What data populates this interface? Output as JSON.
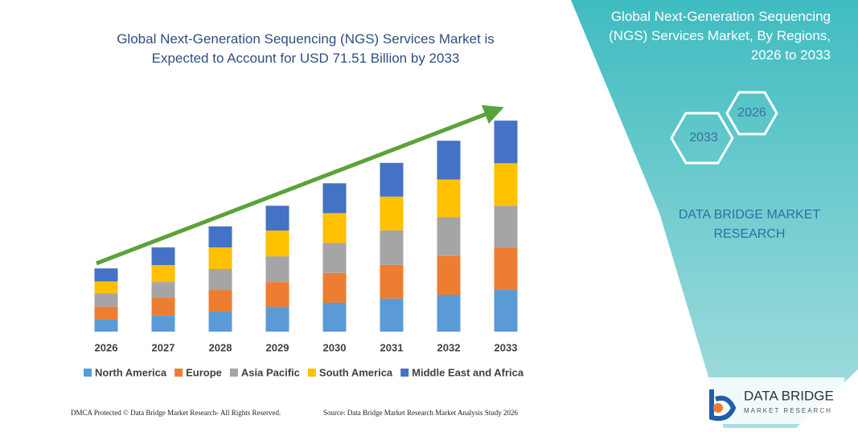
{
  "chart_data": {
    "type": "stacked-bar",
    "title": "Global Next-Generation Sequencing (NGS) Services Market is Expected to Account for USD 71.51 Billion by 2033",
    "categories": [
      "2026",
      "2027",
      "2028",
      "2029",
      "2030",
      "2031",
      "2032",
      "2033"
    ],
    "series": [
      {
        "name": "North America",
        "color": "#5b9bd5",
        "values": [
          4.1,
          5.4,
          6.8,
          8.4,
          9.8,
          11.2,
          12.5,
          14.1
        ]
      },
      {
        "name": "Europe",
        "color": "#ed7d31",
        "values": [
          4.4,
          6.0,
          7.3,
          8.4,
          10.1,
          11.4,
          13.1,
          14.4
        ]
      },
      {
        "name": "Asia Pacific",
        "color": "#a5a5a5",
        "values": [
          4.4,
          5.4,
          7.1,
          8.7,
          10.1,
          11.7,
          13.1,
          14.1
        ]
      },
      {
        "name": "South America",
        "color": "#ffc000",
        "values": [
          4.1,
          5.7,
          7.3,
          8.7,
          10.1,
          11.4,
          12.8,
          14.4
        ]
      },
      {
        "name": "Middle East and Africa",
        "color": "#4472c4",
        "values": [
          4.4,
          6.0,
          7.1,
          8.4,
          10.1,
          11.4,
          13.1,
          14.4
        ]
      }
    ]
  },
  "panel": {
    "title": "Global Next-Generation Sequencing (NGS) Services Market, By Regions, 2026 to 2033",
    "hex_end": "2033",
    "hex_start": "2026",
    "brand": "DATA BRIDGE MARKET RESEARCH"
  },
  "footer": {
    "left": "DMCA Protected © Data Bridge Market Research- All Rights Reserved.",
    "right": "Source: Data Bridge Market Research Market Analysis Study 2026"
  },
  "logo": {
    "name": "DATA BRIDGE",
    "tagline": "MARKET RESEARCH"
  }
}
